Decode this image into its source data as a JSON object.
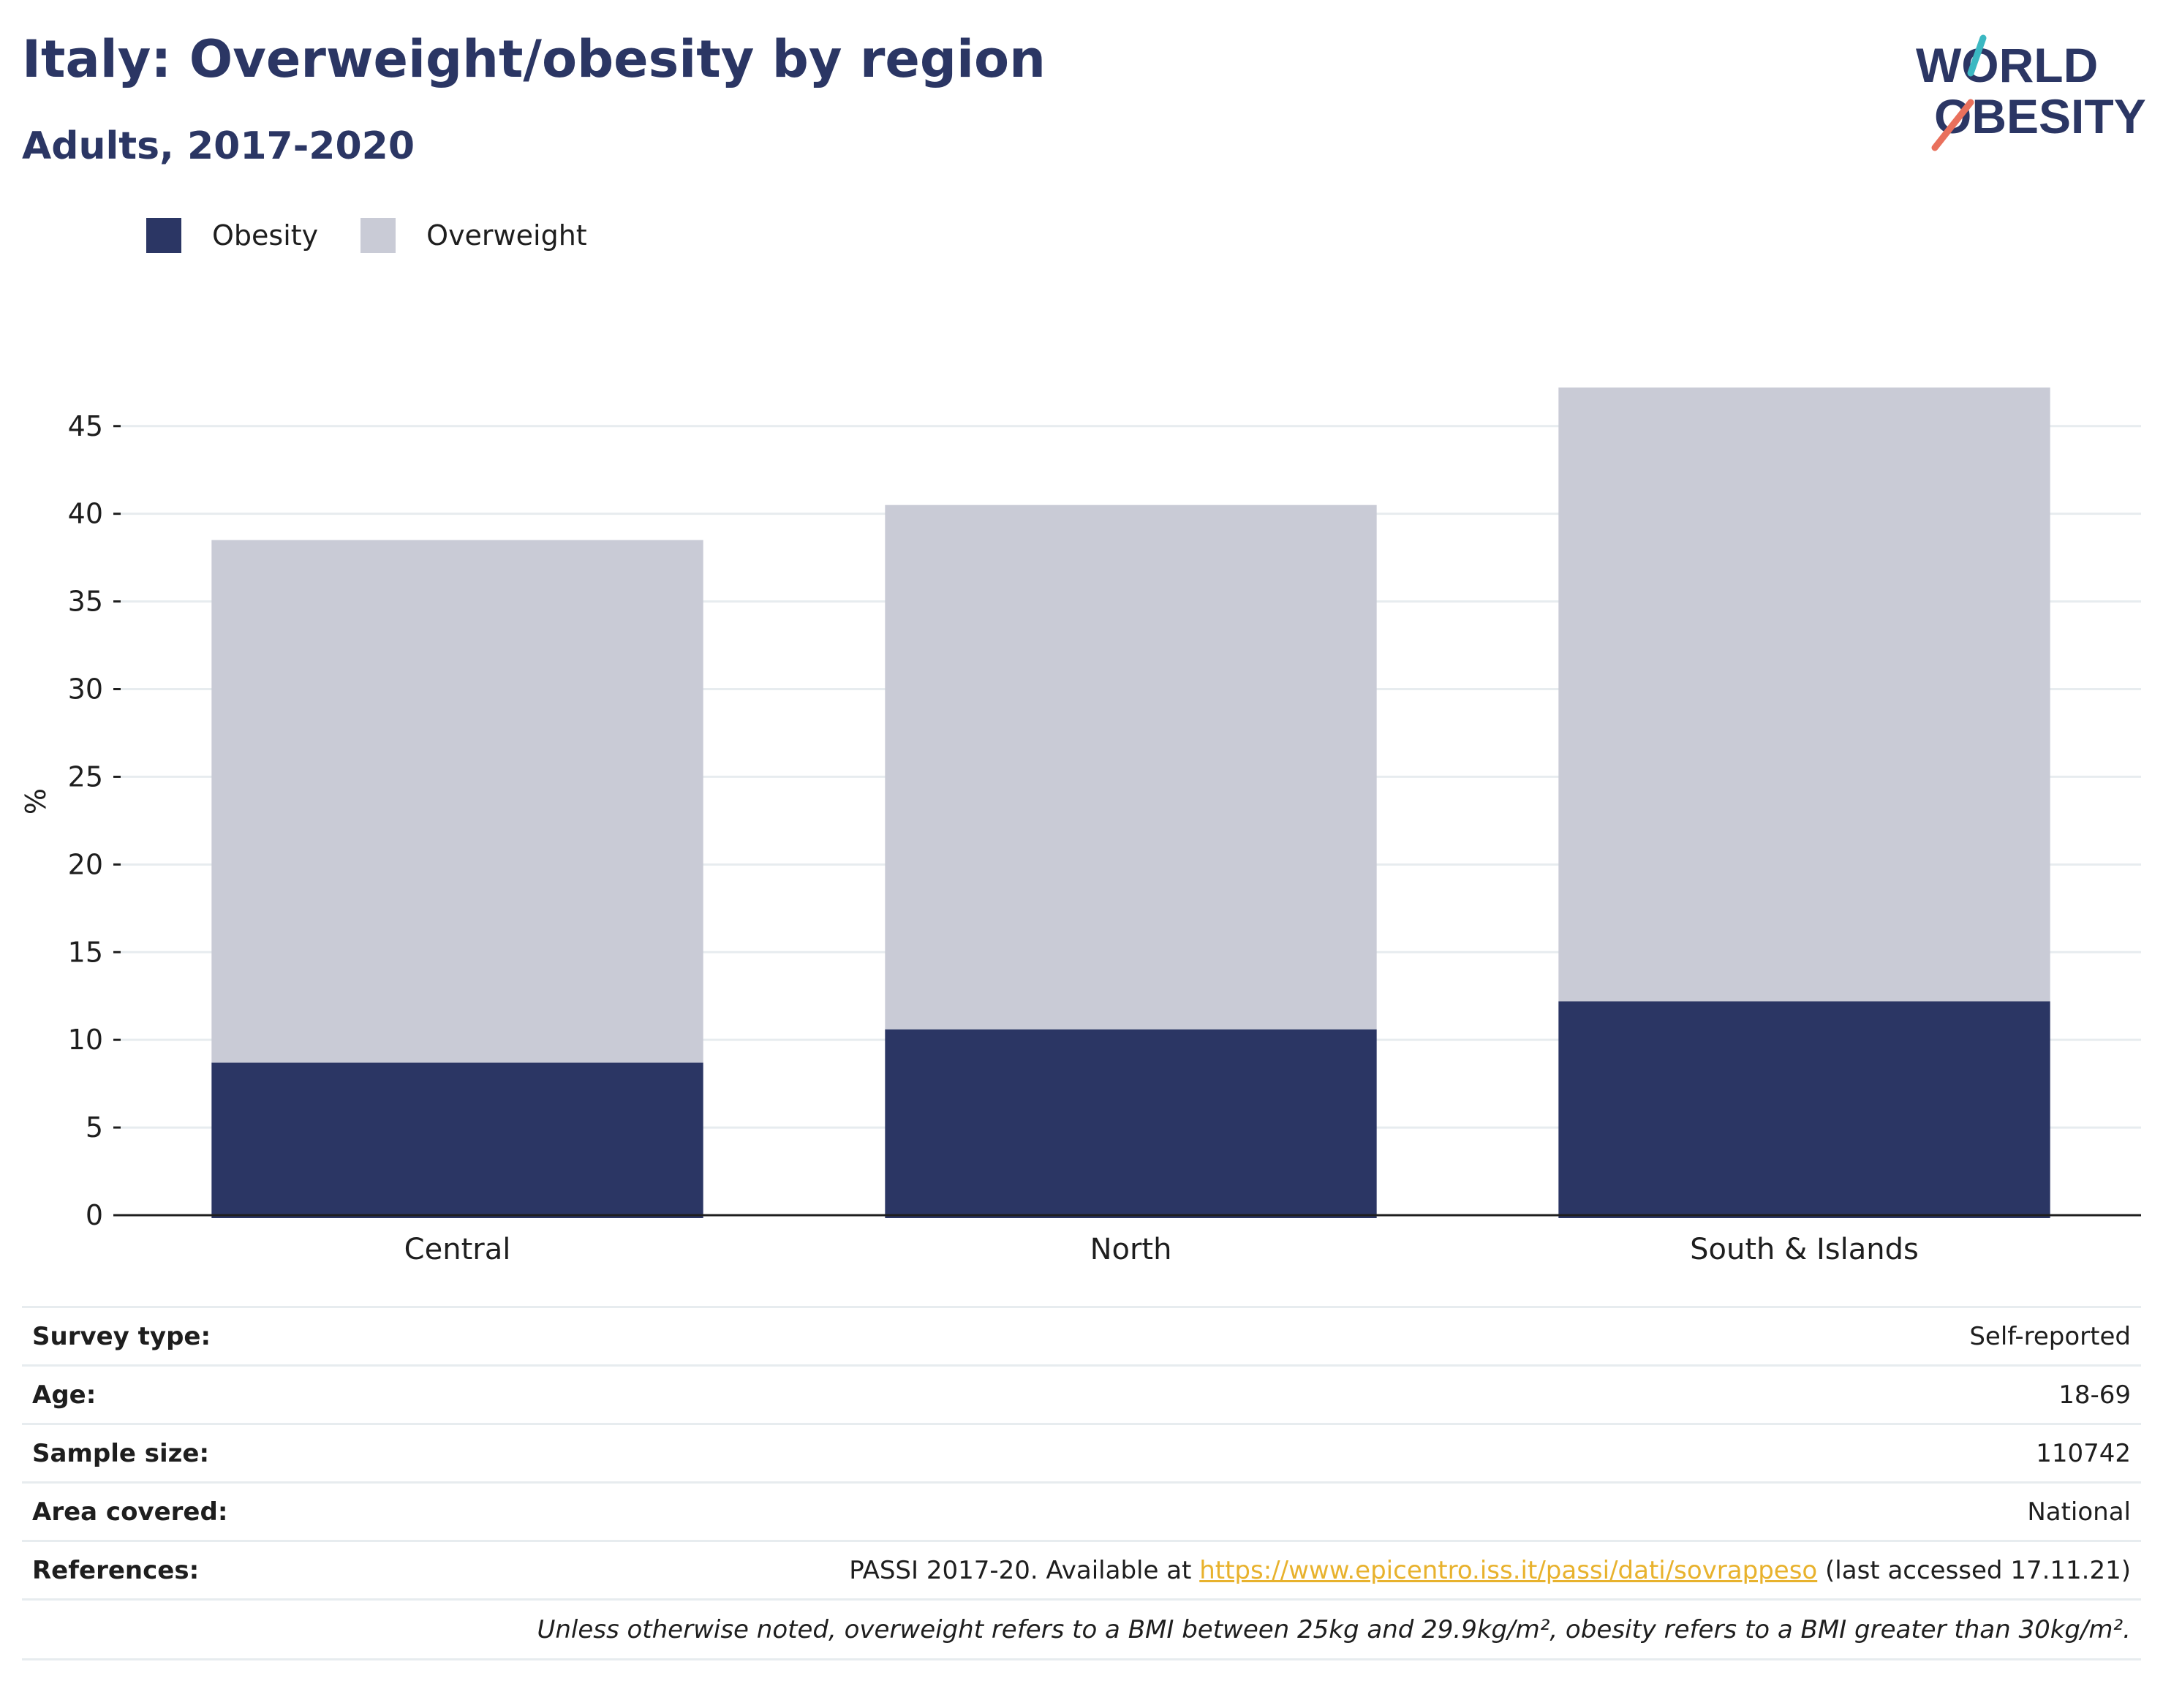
{
  "header": {
    "title": "Italy: Overweight/obesity by region",
    "subtitle": "Adults, 2017-2020"
  },
  "logo": {
    "line1": "WORLD",
    "line2": "OBESITY",
    "accent_teal": "#3bb8c2",
    "accent_coral": "#e9705c",
    "text_color": "#2b3664"
  },
  "colors": {
    "obesity": "#2b3664",
    "overweight": "#c9cbd6",
    "grid": "#e7ecef",
    "axis": "#1e1e1e"
  },
  "legend": {
    "items": [
      {
        "label": "Obesity"
      },
      {
        "label": "Overweight"
      }
    ]
  },
  "chart_data": {
    "type": "bar",
    "stacked": true,
    "categories": [
      "Central",
      "North",
      "South & Islands"
    ],
    "series": [
      {
        "name": "Obesity",
        "values": [
          8.7,
          10.6,
          12.2
        ]
      },
      {
        "name": "Overweight",
        "values": [
          29.8,
          29.9,
          35.0
        ]
      }
    ],
    "ylabel": "%",
    "ylim": [
      0,
      47.2
    ],
    "yticks": [
      0,
      5,
      10,
      15,
      20,
      25,
      30,
      35,
      40,
      45
    ],
    "grid": true,
    "legend_position": "top-left"
  },
  "info": {
    "rows": [
      {
        "label": "Survey type:",
        "value": "Self-reported"
      },
      {
        "label": "Age:",
        "value": "18-69"
      },
      {
        "label": "Sample size:",
        "value": "110742"
      },
      {
        "label": "Area covered:",
        "value": "National"
      }
    ],
    "references": {
      "label": "References:",
      "prefix": "PASSI 2017-20. Available at ",
      "link": "https://www.epicentro.iss.it/passi/dati/sovrappeso",
      "suffix": " (last accessed 17.11.21)"
    },
    "note": "Unless otherwise noted, overweight refers to a BMI between 25kg and 29.9kg/m², obesity refers to a BMI greater than 30kg/m²."
  }
}
